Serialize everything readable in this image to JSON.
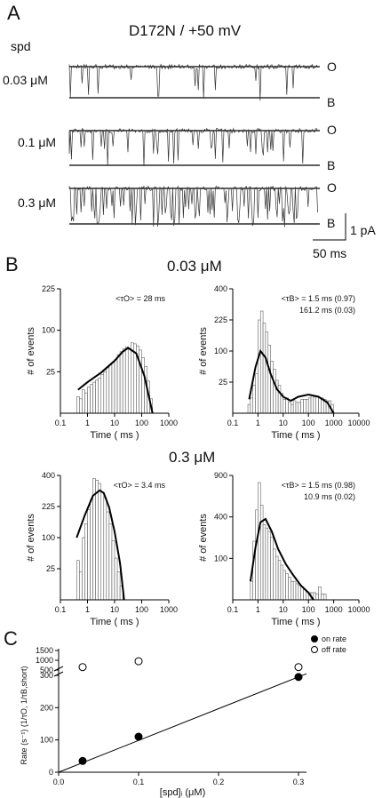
{
  "panel_a": {
    "letter": "A",
    "title": "D172N / +50 mV",
    "spd_label": "spd",
    "traces": [
      {
        "concentration": "0.03 μM",
        "open_label": "O",
        "blocked_label": "B"
      },
      {
        "concentration": "0.1 μM",
        "open_label": "O",
        "blocked_label": "B"
      },
      {
        "concentration": "0.3 μM",
        "open_label": "O",
        "blocked_label": "B"
      }
    ],
    "scale_current": "1 pA",
    "scale_time": "50 ms"
  },
  "panel_b": {
    "letter": "B",
    "groups": [
      {
        "concentration": "0.03 μM"
      },
      {
        "concentration": "0.3 μM"
      }
    ]
  },
  "panel_c": {
    "letter": "C"
  },
  "chart_data": [
    {
      "type": "bar",
      "panel": "B",
      "group": "0.03 μM",
      "title": "<τO> = 28 ms",
      "annotation_lines": [
        "<τO> = 28 ms"
      ],
      "xlabel": "Time ( ms )",
      "ylabel": "# of events",
      "x_scale": "log",
      "y_scale": "sqrt",
      "x_ticks": [
        "0.1",
        "1",
        "10",
        "100",
        "1000"
      ],
      "y_ticks": [
        "25",
        "100",
        "225"
      ],
      "xlim": [
        0.1,
        1000
      ],
      "ylim": [
        0,
        225
      ],
      "bins_log10_center": [
        -0.35,
        -0.25,
        -0.15,
        -0.05,
        0.05,
        0.15,
        0.25,
        0.35,
        0.45,
        0.55,
        0.65,
        0.75,
        0.85,
        0.95,
        1.05,
        1.15,
        1.25,
        1.35,
        1.45,
        1.55,
        1.65,
        1.75,
        1.85,
        1.95,
        2.05,
        2.15,
        2.25,
        2.35
      ],
      "values": [
        4,
        3,
        8,
        6,
        10,
        12,
        14,
        16,
        18,
        22,
        25,
        30,
        34,
        38,
        42,
        50,
        55,
        60,
        64,
        60,
        72,
        70,
        66,
        58,
        45,
        32,
        15,
        3
      ],
      "fit": {
        "log10_x": [
          -0.35,
          0,
          0.5,
          1.0,
          1.3,
          1.5,
          1.8,
          2.1,
          2.4
        ],
        "y": [
          8,
          14,
          24,
          40,
          55,
          62,
          52,
          20,
          0
        ]
      }
    },
    {
      "type": "bar",
      "panel": "B",
      "group": "0.03 μM",
      "title": "<τB> = 1.5 ms (0.97) 161.2 ms (0.03)",
      "annotation_lines": [
        "<τB> = 1.5 ms (0.97)",
        "161.2 ms (0.03)"
      ],
      "xlabel": "Time ( ms )",
      "ylabel": "# of events",
      "x_scale": "log",
      "y_scale": "sqrt",
      "x_ticks": [
        "0.1",
        "1",
        "10",
        "100",
        "1000",
        "10000"
      ],
      "y_ticks": [
        "25",
        "100",
        "225",
        "400"
      ],
      "xlim": [
        0.1,
        10000
      ],
      "ylim": [
        0,
        400
      ],
      "bins_log10_center": [
        -0.35,
        -0.25,
        -0.15,
        -0.05,
        0.05,
        0.15,
        0.25,
        0.35,
        0.45,
        0.55,
        0.65,
        0.75,
        0.85,
        0.95,
        1.05,
        1.15,
        1.25,
        1.35,
        1.45,
        1.55,
        1.65,
        1.75,
        1.85,
        1.95,
        2.05,
        2.15,
        2.25,
        2.35,
        2.45,
        2.55,
        2.65,
        2.75,
        2.85,
        2.95
      ],
      "values": [
        2,
        6,
        20,
        40,
        225,
        270,
        210,
        170,
        120,
        70,
        50,
        28,
        20,
        10,
        5,
        6,
        3,
        2,
        4,
        3,
        3,
        5,
        5,
        5,
        6,
        8,
        7,
        7,
        6,
        6,
        5,
        4,
        4,
        2
      ],
      "fit": {
        "log10_x": [
          -0.35,
          -0.1,
          0.1,
          0.3,
          0.5,
          0.75,
          1.0,
          1.3,
          1.6,
          2.0,
          2.4,
          2.75,
          3.0
        ],
        "y": [
          5,
          55,
          100,
          80,
          40,
          15,
          7,
          4,
          7,
          9,
          7,
          3,
          0
        ]
      }
    },
    {
      "type": "bar",
      "panel": "B",
      "group": "0.3 μM",
      "title": "<τO> = 3.4 ms",
      "annotation_lines": [
        "<τO> = 3.4 ms"
      ],
      "xlabel": "Time ( ms )",
      "ylabel": "# of events",
      "x_scale": "log",
      "y_scale": "sqrt",
      "x_ticks": [
        "0.1",
        "1",
        "10",
        "100",
        "1000"
      ],
      "y_ticks": [
        "25",
        "100",
        "225",
        "400"
      ],
      "xlim": [
        0.1,
        1000
      ],
      "ylim": [
        0,
        400
      ],
      "bins_log10_center": [
        -0.35,
        -0.25,
        -0.15,
        -0.05,
        0.05,
        0.15,
        0.25,
        0.35,
        0.45,
        0.55,
        0.65,
        0.75,
        0.85,
        0.95,
        1.05,
        1.15,
        1.25
      ],
      "values": [
        40,
        20,
        100,
        150,
        210,
        260,
        380,
        370,
        350,
        300,
        270,
        200,
        150,
        90,
        45,
        20,
        5
      ],
      "fit": {
        "log10_x": [
          -0.4,
          -0.1,
          0.2,
          0.45,
          0.6,
          0.8,
          1.0,
          1.2,
          1.35
        ],
        "y": [
          100,
          185,
          280,
          310,
          295,
          220,
          120,
          35,
          0
        ]
      }
    },
    {
      "type": "bar",
      "panel": "B",
      "group": "0.3 μM",
      "title": "<τB> = 1.5 ms (0.98) 10.9 ms (0.02)",
      "annotation_lines": [
        "<τB> = 1.5 ms (0.98)",
        "10.9 ms (0.02)"
      ],
      "xlabel": "Time ( ms )",
      "ylabel": "# of events",
      "x_scale": "log",
      "y_scale": "sqrt",
      "x_ticks": [
        "0.1",
        "1",
        "10",
        "100",
        "1000",
        "10000"
      ],
      "y_ticks": [
        "100",
        "400",
        "900"
      ],
      "xlim": [
        0.1,
        10000
      ],
      "ylim": [
        0,
        900
      ],
      "bins_log10_center": [
        -0.25,
        -0.15,
        -0.05,
        0.05,
        0.15,
        0.25,
        0.35,
        0.45,
        0.55,
        0.65,
        0.75,
        0.85,
        0.95,
        1.05,
        1.15,
        1.25,
        1.35,
        1.45,
        1.55,
        1.65,
        1.75,
        1.85,
        1.95,
        2.05,
        2.15,
        2.25,
        2.35,
        2.45,
        2.55,
        2.65
      ],
      "values": [
        20,
        200,
        470,
        800,
        520,
        330,
        300,
        270,
        230,
        150,
        110,
        90,
        70,
        50,
        40,
        30,
        20,
        20,
        15,
        12,
        10,
        6,
        4,
        3,
        3,
        3,
        2,
        10,
        2,
        2
      ],
      "fit": {
        "log10_x": [
          -0.3,
          -0.1,
          0.1,
          0.3,
          0.55,
          0.8,
          1.1,
          1.4,
          1.7,
          2.0,
          2.2
        ],
        "y": [
          20,
          160,
          350,
          380,
          270,
          150,
          75,
          35,
          12,
          3,
          0
        ]
      }
    },
    {
      "type": "scatter",
      "panel": "C",
      "xlabel": "[spd]ᵢ (μM)",
      "ylabel": "Rate (s⁻¹) (1/τO, 1/τB,short)",
      "x_ticks": [
        "0.0",
        "0.1",
        "0.2",
        "0.3"
      ],
      "y_ticks_lower": [
        "0",
        "100",
        "200",
        "300"
      ],
      "y_ticks_upper": [
        "500",
        "1000",
        "1500"
      ],
      "xlim": [
        0,
        0.31
      ],
      "ylim": [
        0,
        1500
      ],
      "axis_break": true,
      "legend_position": "top-right",
      "series": [
        {
          "name": "on rate",
          "marker": "filled-circle",
          "x": [
            0.03,
            0.1,
            0.3
          ],
          "y": [
            35,
            110,
            295
          ]
        },
        {
          "name": "off rate",
          "marker": "open-circle",
          "x": [
            0.03,
            0.1,
            0.3
          ],
          "y": [
            650,
            950,
            650
          ]
        }
      ],
      "fit_line": {
        "x": [
          0,
          0.31
        ],
        "y": [
          0,
          305
        ]
      }
    }
  ]
}
